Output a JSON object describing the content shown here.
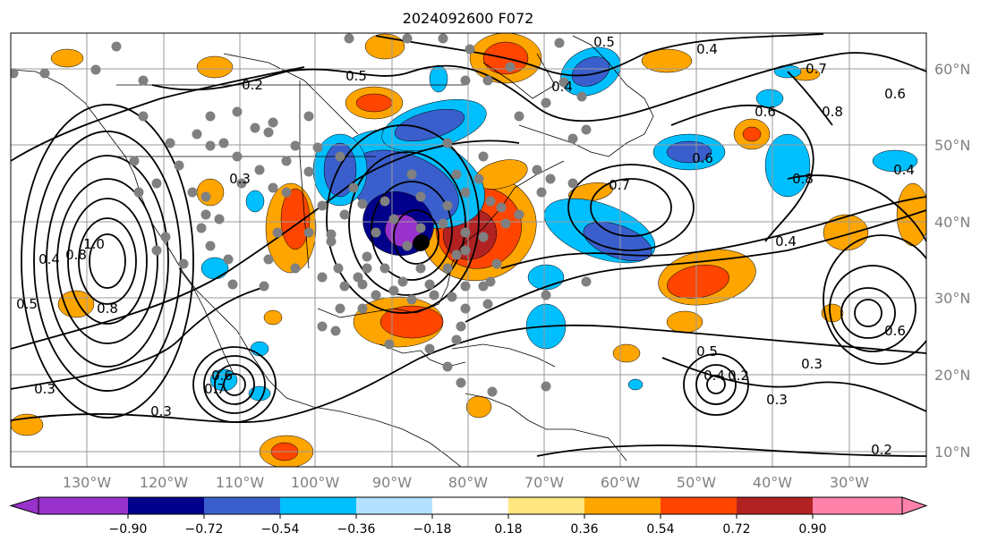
{
  "title": "2024092600 F072",
  "lon_labels": [
    "130°W",
    "120°W",
    "110°W",
    "100°W",
    "90°W",
    "80°W",
    "70°W",
    "60°W",
    "50°W",
    "40°W",
    "30°W"
  ],
  "lat_labels": [
    "60°N",
    "50°N",
    "40°N",
    "30°N",
    "20°N",
    "10°N"
  ],
  "colorbar": {
    "tick_labels": [
      "−0.90",
      "−0.72",
      "−0.54",
      "−0.36",
      "−0.18",
      "0.18",
      "0.36",
      "0.54",
      "0.72",
      "0.90"
    ],
    "colors": [
      "#9932CC",
      "#00008B",
      "#3A5FCD",
      "#00BFFF",
      "#B2E2FF",
      "#FFFFFF",
      "#FFE680",
      "#FFA500",
      "#FF4500",
      "#B22222",
      "#FF82AB"
    ]
  },
  "contour_labels": [
    "0.2",
    "0.5",
    "0.4",
    "0.5",
    "0.7",
    "0.6",
    "0.8",
    "0.6",
    "0.4",
    "0.6",
    "0.7",
    "0.8",
    "0.4",
    "0.3",
    "0.8",
    "1.0",
    "0.4",
    "0.5",
    "0.8",
    "0.3",
    "0.6",
    "0.3",
    "0.7",
    "0.4",
    "0.6",
    "0.3",
    "0.5",
    "0.4",
    "0.2",
    "0.3",
    "0.2"
  ],
  "station_marker_color": "#808080"
}
